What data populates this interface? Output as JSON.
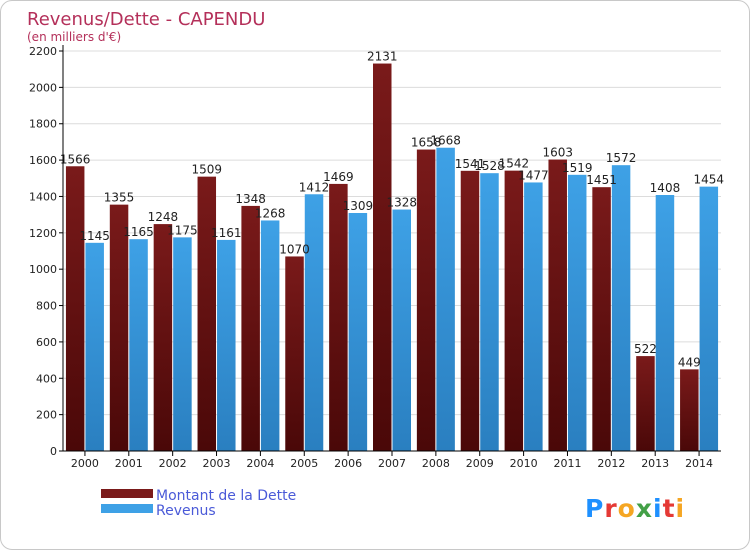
{
  "chart_data": {
    "type": "bar",
    "title": "Revenus/Dette - CAPENDU",
    "subtitle": "(en milliers d'€)",
    "categories": [
      "2000",
      "2001",
      "2002",
      "2003",
      "2004",
      "2005",
      "2006",
      "2007",
      "2008",
      "2009",
      "2010",
      "2011",
      "2012",
      "2013",
      "2014"
    ],
    "series": [
      {
        "name": "Montant de la Dette",
        "color": "#7a1a1a",
        "values": [
          1566,
          1355,
          1248,
          1509,
          1348,
          1070,
          1469,
          2131,
          1658,
          1541,
          1542,
          1603,
          1451,
          522,
          449
        ],
        "labels": [
          "1566",
          "1355",
          "1248",
          "1509",
          "1348",
          "1070",
          "1469",
          "2131",
          "1658",
          "1541",
          "1542",
          "1603",
          "1451",
          "522",
          "449"
        ]
      },
      {
        "name": "Revenus",
        "color": "#3ea1e6",
        "values": [
          1145,
          1165,
          1175,
          1161,
          1268,
          1412,
          1309,
          1328,
          1668,
          1528,
          1477,
          1519,
          1572,
          1408,
          1454
        ],
        "labels": [
          "1145",
          "1165",
          "1175",
          "1161",
          "1268",
          "1412",
          "1309",
          "1328",
          "1668",
          "1528",
          "1477",
          "1519",
          "1572",
          "1408",
          "1454"
        ]
      }
    ],
    "yticks": [
      0,
      200,
      400,
      600,
      800,
      1000,
      1200,
      1400,
      1600,
      1800,
      2000,
      2200
    ],
    "ylim": [
      0,
      2200
    ],
    "grid": true,
    "legend_position": "bottom-left"
  },
  "logo": {
    "text": "Proxiti"
  },
  "colors": {
    "title": "#b4305a",
    "legend_text": "#4a5ad8",
    "axis": "#000000",
    "grid": "#dcdcdc"
  }
}
